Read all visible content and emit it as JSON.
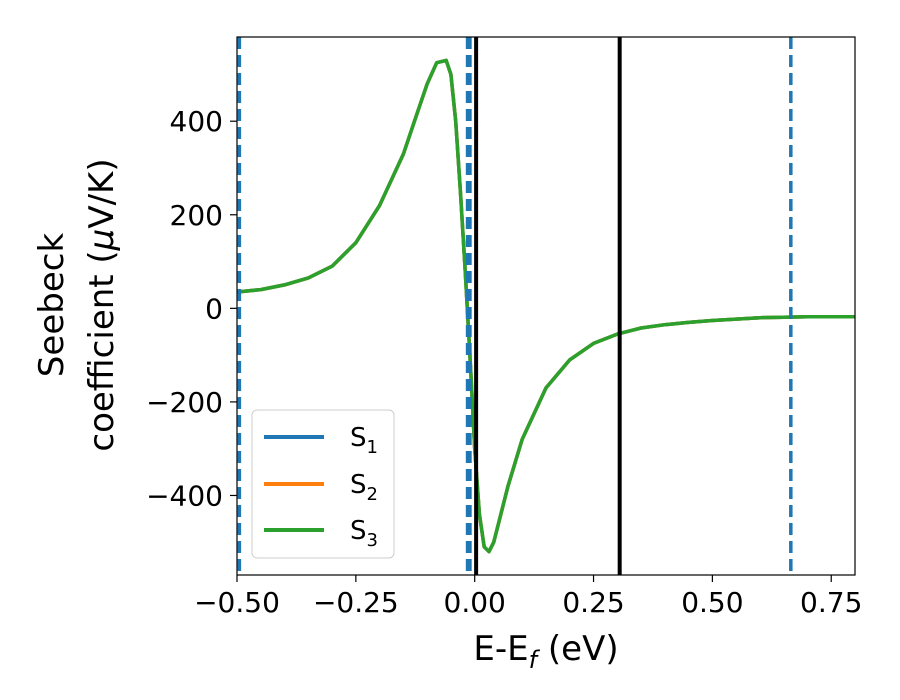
{
  "chart_data": {
    "type": "line",
    "xlabel": {
      "main": "E-E",
      "sub": "f",
      "unit": " (eV)"
    },
    "ylabel": {
      "line1": "Seebeck",
      "line2": "coefficient  (",
      "mu": "μ",
      "unit": "V/K)"
    },
    "xlim": [
      -0.5,
      0.8
    ],
    "ylim": [
      -570,
      580
    ],
    "xticks": [
      {
        "value": -0.5,
        "label": "−0.50"
      },
      {
        "value": -0.25,
        "label": "−0.25"
      },
      {
        "value": 0.0,
        "label": "0.00"
      },
      {
        "value": 0.25,
        "label": "0.25"
      },
      {
        "value": 0.5,
        "label": "0.50"
      },
      {
        "value": 0.75,
        "label": "0.75"
      }
    ],
    "yticks": [
      {
        "value": 400,
        "label": "400"
      },
      {
        "value": 200,
        "label": "200"
      },
      {
        "value": 0,
        "label": "0"
      },
      {
        "value": -200,
        "label": "−200"
      },
      {
        "value": -400,
        "label": "−400"
      }
    ],
    "grid": false,
    "legend_position": "lower-left",
    "x": [
      -0.5,
      -0.45,
      -0.4,
      -0.35,
      -0.3,
      -0.25,
      -0.2,
      -0.15,
      -0.12,
      -0.1,
      -0.08,
      -0.06,
      -0.05,
      -0.04,
      -0.03,
      -0.02,
      -0.01,
      0.0,
      0.01,
      0.02,
      0.03,
      0.04,
      0.05,
      0.07,
      0.1,
      0.15,
      0.2,
      0.25,
      0.3,
      0.35,
      0.4,
      0.45,
      0.5,
      0.55,
      0.6,
      0.65,
      0.7,
      0.75,
      0.8
    ],
    "series": [
      {
        "name": "S",
        "sub": "1",
        "color": "#1f77b4",
        "values": [
          35,
          40,
          50,
          65,
          90,
          140,
          220,
          330,
          420,
          480,
          525,
          530,
          500,
          400,
          250,
          80,
          -100,
          -300,
          -440,
          -510,
          -520,
          -500,
          -460,
          -380,
          -280,
          -170,
          -110,
          -75,
          -55,
          -42,
          -35,
          -30,
          -26,
          -23,
          -20,
          -19,
          -18,
          -18,
          -18
        ]
      },
      {
        "name": "S",
        "sub": "2",
        "color": "#ff7f0e",
        "values": [
          35,
          40,
          50,
          65,
          90,
          140,
          220,
          330,
          420,
          480,
          525,
          530,
          500,
          400,
          250,
          80,
          -100,
          -300,
          -440,
          -510,
          -520,
          -500,
          -460,
          -380,
          -280,
          -170,
          -110,
          -75,
          -55,
          -42,
          -35,
          -30,
          -26,
          -23,
          -20,
          -19,
          -18,
          -18,
          -18
        ]
      },
      {
        "name": "S",
        "sub": "3",
        "color": "#2ca02c",
        "values": [
          35,
          40,
          50,
          65,
          90,
          140,
          220,
          330,
          420,
          480,
          525,
          530,
          500,
          400,
          250,
          80,
          -100,
          -300,
          -440,
          -510,
          -520,
          -500,
          -460,
          -380,
          -280,
          -170,
          -110,
          -75,
          -55,
          -42,
          -35,
          -30,
          -26,
          -23,
          -20,
          -19,
          -18,
          -18,
          -18
        ]
      }
    ],
    "vlines": [
      {
        "x": -0.495,
        "color": "#1f77b4",
        "style": "dashed"
      },
      {
        "x": -0.015,
        "color": "#1f77b4",
        "style": "dashed"
      },
      {
        "x": -0.01,
        "color": "#1f77b4",
        "style": "dashed"
      },
      {
        "x": 0.665,
        "color": "#1f77b4",
        "style": "dashed"
      },
      {
        "x": 0.003,
        "color": "#000000",
        "style": "solid"
      },
      {
        "x": 0.305,
        "color": "#000000",
        "style": "solid"
      }
    ]
  }
}
